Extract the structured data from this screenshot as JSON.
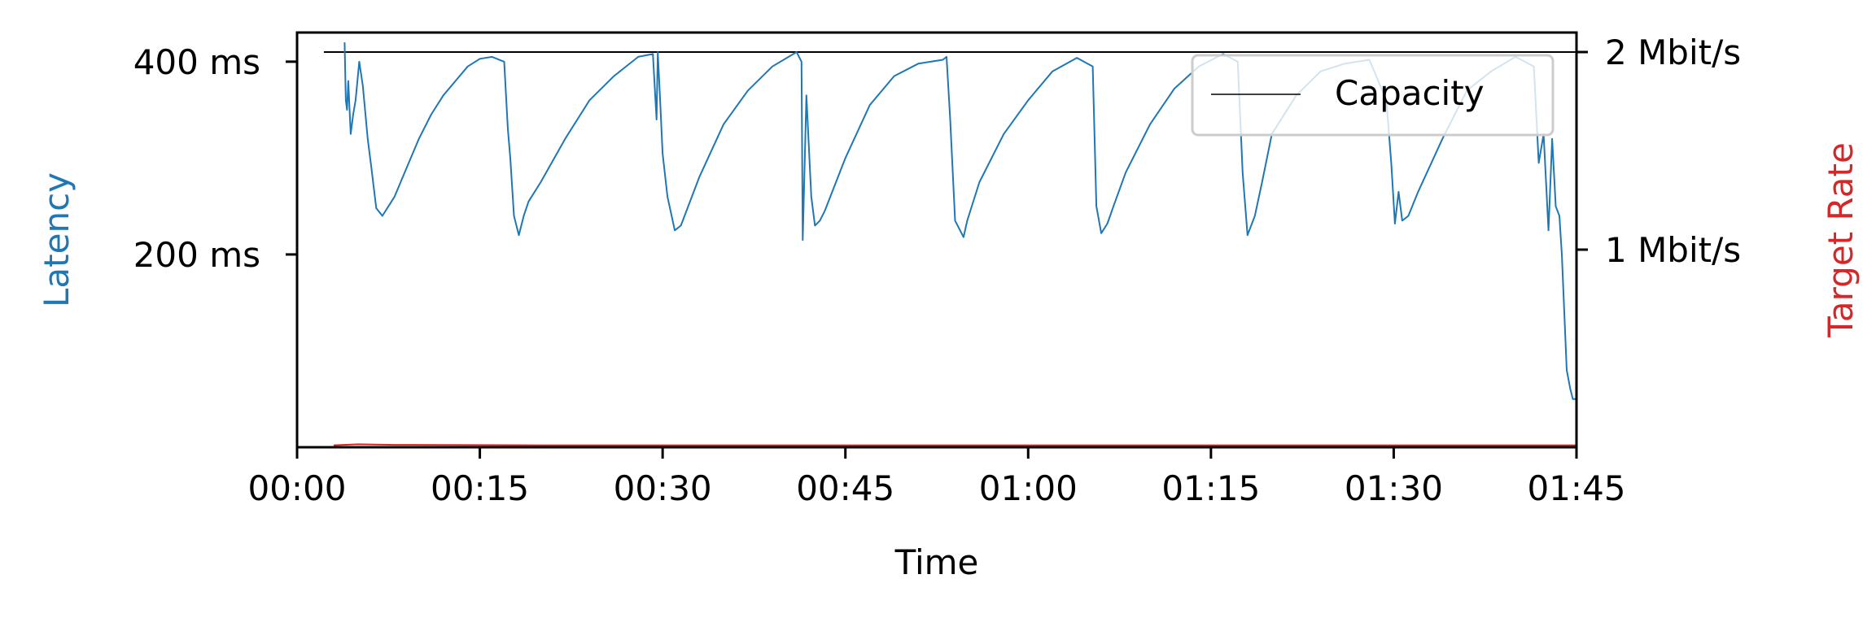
{
  "chart_data": {
    "type": "line",
    "xlabel": "Time",
    "ylabel_left": "Latency",
    "ylabel_right": "Target Rate",
    "x_ticks": [
      "00:00",
      "00:15",
      "00:30",
      "00:45",
      "01:00",
      "01:15",
      "01:30",
      "01:45"
    ],
    "x_tick_seconds": [
      0,
      15,
      30,
      45,
      60,
      75,
      90,
      105
    ],
    "xlim": [
      0,
      105
    ],
    "left_ticks": [
      "200 ms",
      "400 ms"
    ],
    "left_tick_values": [
      200,
      400
    ],
    "ylim_left": [
      0,
      410
    ],
    "right_ticks": [
      "1 Mbit/s",
      "2 Mbit/s"
    ],
    "right_tick_values": [
      1,
      2
    ],
    "ylim_right": [
      0,
      2.0
    ],
    "legend": {
      "position": "top-right",
      "entries": [
        {
          "label": "Capacity",
          "color": "#000000"
        }
      ]
    },
    "series": [
      {
        "name": "Capacity",
        "axis": "right",
        "color": "#000000",
        "x": [
          2.2,
          105
        ],
        "values": [
          2.0,
          2.0
        ]
      },
      {
        "axis": "left",
        "color": "#1f77b4",
        "x": [
          3.9,
          4.0,
          4.1,
          4.2,
          4.4,
          4.6,
          4.8,
          5.1,
          5.4,
          5.8,
          6.1,
          6.5,
          7.0,
          7.5,
          8.0,
          9.0,
          10.0,
          11.0,
          12.0,
          13.0,
          14.0,
          15.0,
          16.0,
          17.0,
          17.3,
          17.5,
          17.8,
          18.2,
          18.6,
          19.0,
          20.0,
          22.0,
          24.0,
          26.0,
          28.0,
          29.2,
          29.5,
          29.6,
          29.8,
          30.0,
          30.4,
          31.0,
          31.5,
          33.0,
          35.0,
          37.0,
          39.0,
          41.0,
          41.4,
          41.5,
          41.8,
          42.2,
          42.5,
          42.9,
          43.3,
          45.0,
          47.0,
          49.0,
          51.0,
          53.0,
          53.3,
          53.6,
          54.0,
          54.7,
          55.0,
          56.0,
          58.0,
          60.0,
          62.0,
          64.0,
          65.3,
          65.6,
          66.0,
          66.5,
          67.0,
          68.0,
          70.0,
          72.0,
          74.0,
          76.0,
          77.2,
          77.6,
          78.0,
          78.6,
          79.2,
          80.0,
          82.0,
          84.0,
          86.0,
          88.0,
          89.4,
          89.8,
          90.1,
          90.4,
          90.7,
          91.2,
          92.0,
          94.0,
          96.0,
          98.0,
          100.0,
          101.5,
          101.9,
          102.3,
          102.7,
          103.0,
          103.3,
          103.6,
          103.8,
          104.0,
          104.2,
          104.5,
          104.7,
          105.0
        ],
        "values": [
          420,
          360,
          350,
          380,
          325,
          345,
          360,
          400,
          375,
          320,
          290,
          248,
          240,
          250,
          260,
          290,
          320,
          345,
          365,
          380,
          395,
          403,
          405,
          400,
          330,
          300,
          240,
          220,
          240,
          255,
          275,
          320,
          360,
          385,
          405,
          408,
          340,
          410,
          360,
          305,
          260,
          225,
          230,
          280,
          335,
          370,
          395,
          410,
          400,
          215,
          365,
          260,
          230,
          235,
          245,
          300,
          355,
          385,
          398,
          402,
          405,
          340,
          235,
          218,
          235,
          275,
          325,
          360,
          390,
          404,
          395,
          250,
          222,
          232,
          250,
          285,
          335,
          372,
          395,
          408,
          400,
          285,
          220,
          240,
          275,
          325,
          365,
          390,
          398,
          402,
          360,
          295,
          232,
          265,
          235,
          240,
          265,
          320,
          370,
          390,
          405,
          395,
          295,
          325,
          225,
          320,
          250,
          240,
          200,
          140,
          80,
          60,
          50,
          50
        ]
      },
      {
        "axis": "right",
        "color": "#d62728",
        "x": [
          3.0,
          5.0,
          8.0,
          20.0,
          60.0,
          104.5,
          105.0
        ],
        "values": [
          0.01,
          0.015,
          0.012,
          0.01,
          0.01,
          0.01,
          0.01
        ]
      }
    ]
  }
}
